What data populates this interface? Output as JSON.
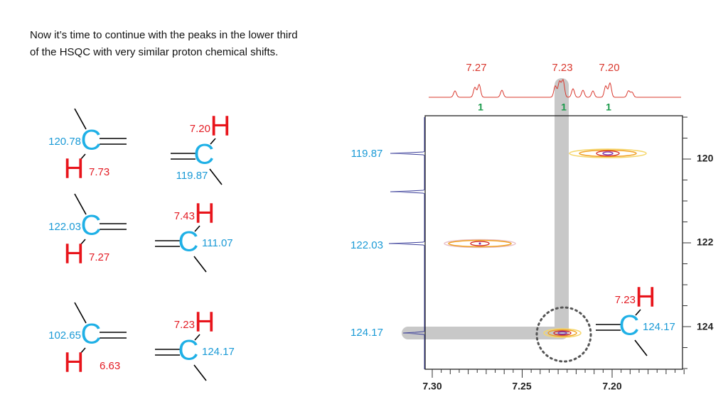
{
  "intro": {
    "lines": [
      "Now it’s time to continue with the peaks in the lower third",
      "of the HSQC with very similar proton chemical shifts."
    ]
  },
  "fragments": [
    {
      "carbon": "C",
      "hydrogen": "H",
      "carbon_shift": "120.78",
      "proton_shift": "7.73"
    },
    {
      "carbon": "C",
      "hydrogen": "H",
      "carbon_shift": "119.87",
      "proton_shift": "7.20"
    },
    {
      "carbon": "C",
      "hydrogen": "H",
      "carbon_shift": "122.03",
      "proton_shift": "7.27"
    },
    {
      "carbon": "C",
      "hydrogen": "H",
      "carbon_shift": "111.07",
      "proton_shift": "7.43"
    },
    {
      "carbon": "C",
      "hydrogen": "H",
      "carbon_shift": "102.65",
      "proton_shift": "6.63"
    },
    {
      "carbon": "C",
      "hydrogen": "H",
      "carbon_shift": "124.17",
      "proton_shift": "7.23"
    }
  ],
  "spectrum": {
    "proton_peaks": [
      "7.27",
      "7.23",
      "7.20"
    ],
    "integrals": [
      "1",
      "1",
      "1"
    ],
    "carbon_peaks": [
      "119.87",
      "122.03",
      "124.17"
    ],
    "carbon_axis": [
      "120",
      "122",
      "124"
    ],
    "proton_axis": [
      "7.30",
      "7.25",
      "7.20"
    ],
    "assignment": {
      "carbon": "C",
      "hydrogen": "H",
      "carbon_shift": "124.17",
      "proton_shift": "7.23"
    }
  }
}
